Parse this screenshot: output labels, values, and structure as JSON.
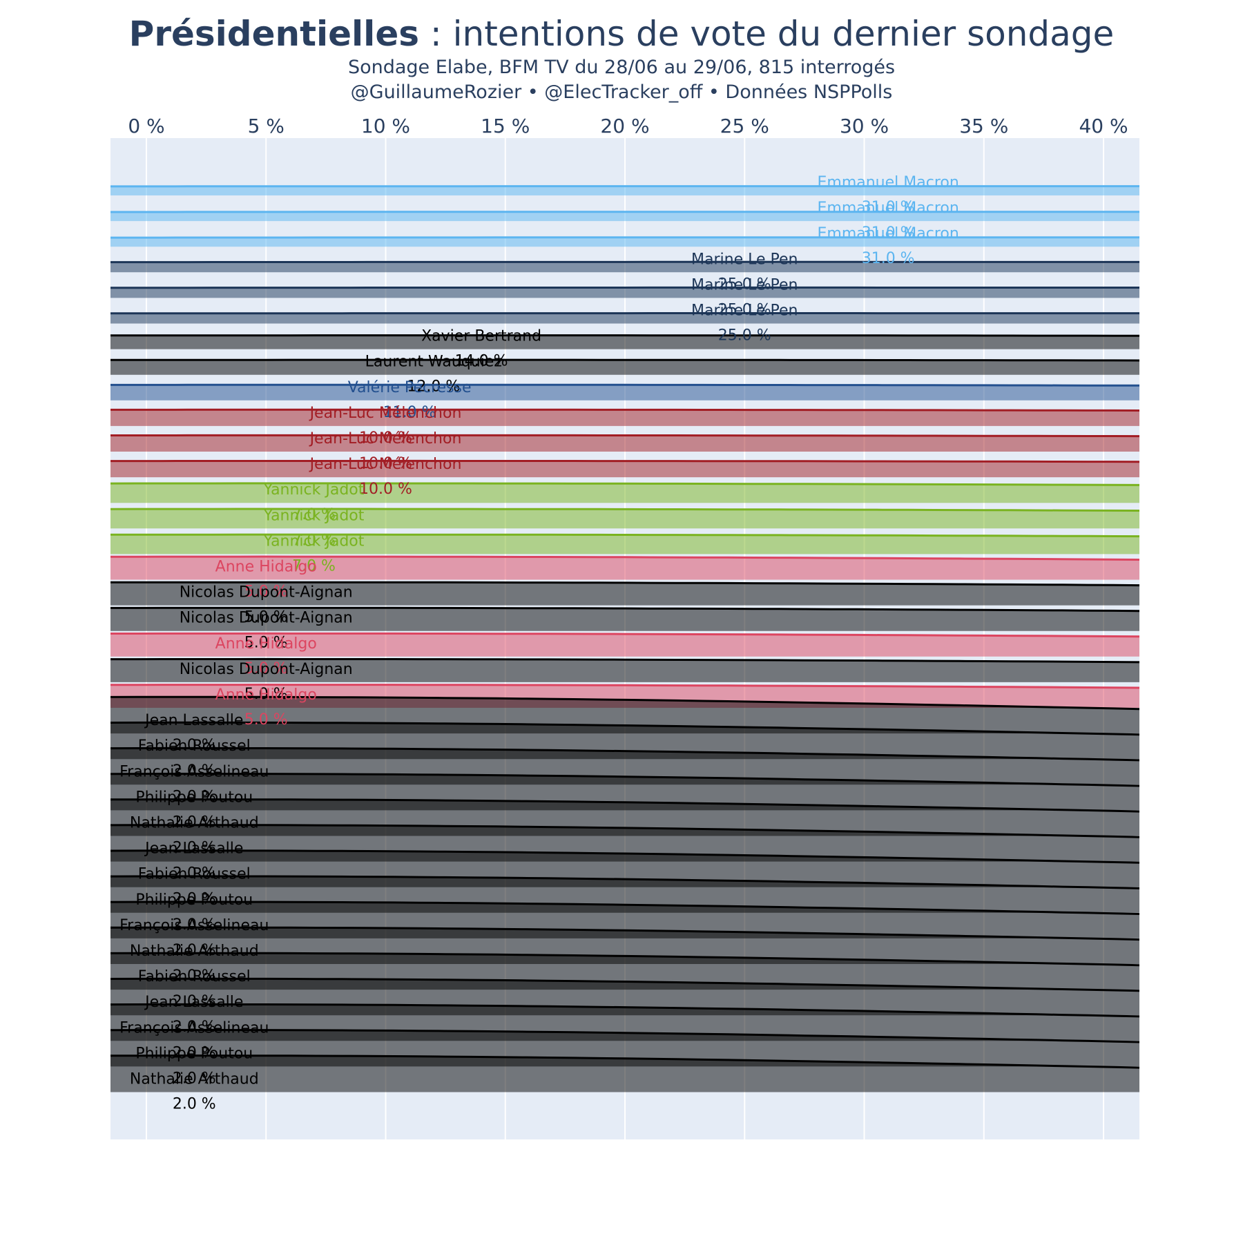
{
  "header": {
    "title_bold": "Présidentielles",
    "title_rest": " : intentions de vote du dernier sondage",
    "subtitle_line1": "Sondage Elabe, BFM TV du 28/06 au 29/06, 815 interrogés",
    "subtitle_line2": "@GuillaumeRozier • @ElecTracker_off • Données NSPPolls"
  },
  "colors": {
    "plot_bg": "#e5ecf6",
    "grid": "#ffffff",
    "macron": "#5cb5f0",
    "le_pen": "#1c3557",
    "black": "#000000",
    "pecresse": "#23508f",
    "melenchon": "#a21d24",
    "jadot": "#7ab320",
    "hidalgo": "#dc4560"
  },
  "chart_data": {
    "type": "ridgeline",
    "x_axis": {
      "range": [
        -1.5,
        41.5
      ],
      "tick_values": [
        0,
        5,
        10,
        15,
        20,
        25,
        30,
        35,
        40
      ],
      "tick_labels": [
        "0 %",
        "5 %",
        "10 %",
        "15 %",
        "20 %",
        "25 %",
        "30 %",
        "35 %",
        "40 %"
      ],
      "position": "top",
      "grid": true
    },
    "series": [
      {
        "candidate": "Emmanuel Macron",
        "value": 31.0,
        "label": "31.0 %",
        "color_key": "macron"
      },
      {
        "candidate": "Emmanuel Macron",
        "value": 31.0,
        "label": "31.0 %",
        "color_key": "macron"
      },
      {
        "candidate": "Emmanuel Macron",
        "value": 31.0,
        "label": "31.0 %",
        "color_key": "macron"
      },
      {
        "candidate": "Marine Le Pen",
        "value": 25.0,
        "label": "25.0 %",
        "color_key": "le_pen"
      },
      {
        "candidate": "Marine Le Pen",
        "value": 25.0,
        "label": "25.0 %",
        "color_key": "le_pen"
      },
      {
        "candidate": "Marine Le Pen",
        "value": 25.0,
        "label": "25.0 %",
        "color_key": "le_pen"
      },
      {
        "candidate": "Xavier Bertrand",
        "value": 14.0,
        "label": "14.0 %",
        "color_key": "black"
      },
      {
        "candidate": "Laurent Wauquiez",
        "value": 12.0,
        "label": "12.0 %",
        "color_key": "black"
      },
      {
        "candidate": "Valérie Pécresse",
        "value": 11.0,
        "label": "11.0 %",
        "color_key": "pecresse"
      },
      {
        "candidate": "Jean-Luc Mélenchon",
        "value": 10.0,
        "label": "10.0 %",
        "color_key": "melenchon"
      },
      {
        "candidate": "Jean-Luc Mélenchon",
        "value": 10.0,
        "label": "10.0 %",
        "color_key": "melenchon"
      },
      {
        "candidate": "Jean-Luc Mélenchon",
        "value": 10.0,
        "label": "10.0 %",
        "color_key": "melenchon"
      },
      {
        "candidate": "Yannick Jadot",
        "value": 7.0,
        "label": "7.0 %",
        "color_key": "jadot"
      },
      {
        "candidate": "Yannick Jadot",
        "value": 7.0,
        "label": "7.0 %",
        "color_key": "jadot"
      },
      {
        "candidate": "Yannick Jadot",
        "value": 7.0,
        "label": "7.0 %",
        "color_key": "jadot"
      },
      {
        "candidate": "Anne Hidalgo",
        "value": 5.0,
        "label": "5.0 %",
        "color_key": "hidalgo"
      },
      {
        "candidate": "Nicolas Dupont-Aignan",
        "value": 5.0,
        "label": "5.0 %",
        "color_key": "black"
      },
      {
        "candidate": "Nicolas Dupont-Aignan",
        "value": 5.0,
        "label": "5.0 %",
        "color_key": "black"
      },
      {
        "candidate": "Anne Hidalgo",
        "value": 5.0,
        "label": "5.0 %",
        "color_key": "hidalgo"
      },
      {
        "candidate": "Nicolas Dupont-Aignan",
        "value": 5.0,
        "label": "5.0 %",
        "color_key": "black"
      },
      {
        "candidate": "Anne Hidalgo",
        "value": 5.0,
        "label": "5.0 %",
        "color_key": "hidalgo"
      },
      {
        "candidate": "Jean Lassalle",
        "value": 2.0,
        "label": "2.0 %",
        "color_key": "black"
      },
      {
        "candidate": "Fabien Roussel",
        "value": 2.0,
        "label": "2.0 %",
        "color_key": "black"
      },
      {
        "candidate": "François Asselineau",
        "value": 2.0,
        "label": "2.0 %",
        "color_key": "black"
      },
      {
        "candidate": "Philippe Poutou",
        "value": 2.0,
        "label": "2.0 %",
        "color_key": "black"
      },
      {
        "candidate": "Nathalie Arthaud",
        "value": 2.0,
        "label": "2.0 %",
        "color_key": "black"
      },
      {
        "candidate": "Jean Lassalle",
        "value": 2.0,
        "label": "2.0 %",
        "color_key": "black"
      },
      {
        "candidate": "Fabien Roussel",
        "value": 2.0,
        "label": "2.0 %",
        "color_key": "black"
      },
      {
        "candidate": "Philippe Poutou",
        "value": 2.0,
        "label": "2.0 %",
        "color_key": "black"
      },
      {
        "candidate": "François Asselineau",
        "value": 2.0,
        "label": "2.0 %",
        "color_key": "black"
      },
      {
        "candidate": "Nathalie Arthaud",
        "value": 2.0,
        "label": "2.0 %",
        "color_key": "black"
      },
      {
        "candidate": "Fabien Roussel",
        "value": 2.0,
        "label": "2.0 %",
        "color_key": "black"
      },
      {
        "candidate": "Jean Lassalle",
        "value": 2.0,
        "label": "2.0 %",
        "color_key": "black"
      },
      {
        "candidate": "François Asselineau",
        "value": 2.0,
        "label": "2.0 %",
        "color_key": "black"
      },
      {
        "candidate": "Philippe Poutou",
        "value": 2.0,
        "label": "2.0 %",
        "color_key": "black"
      },
      {
        "candidate": "Nathalie Arthaud",
        "value": 2.0,
        "label": "2.0 %",
        "color_key": "black"
      }
    ]
  }
}
